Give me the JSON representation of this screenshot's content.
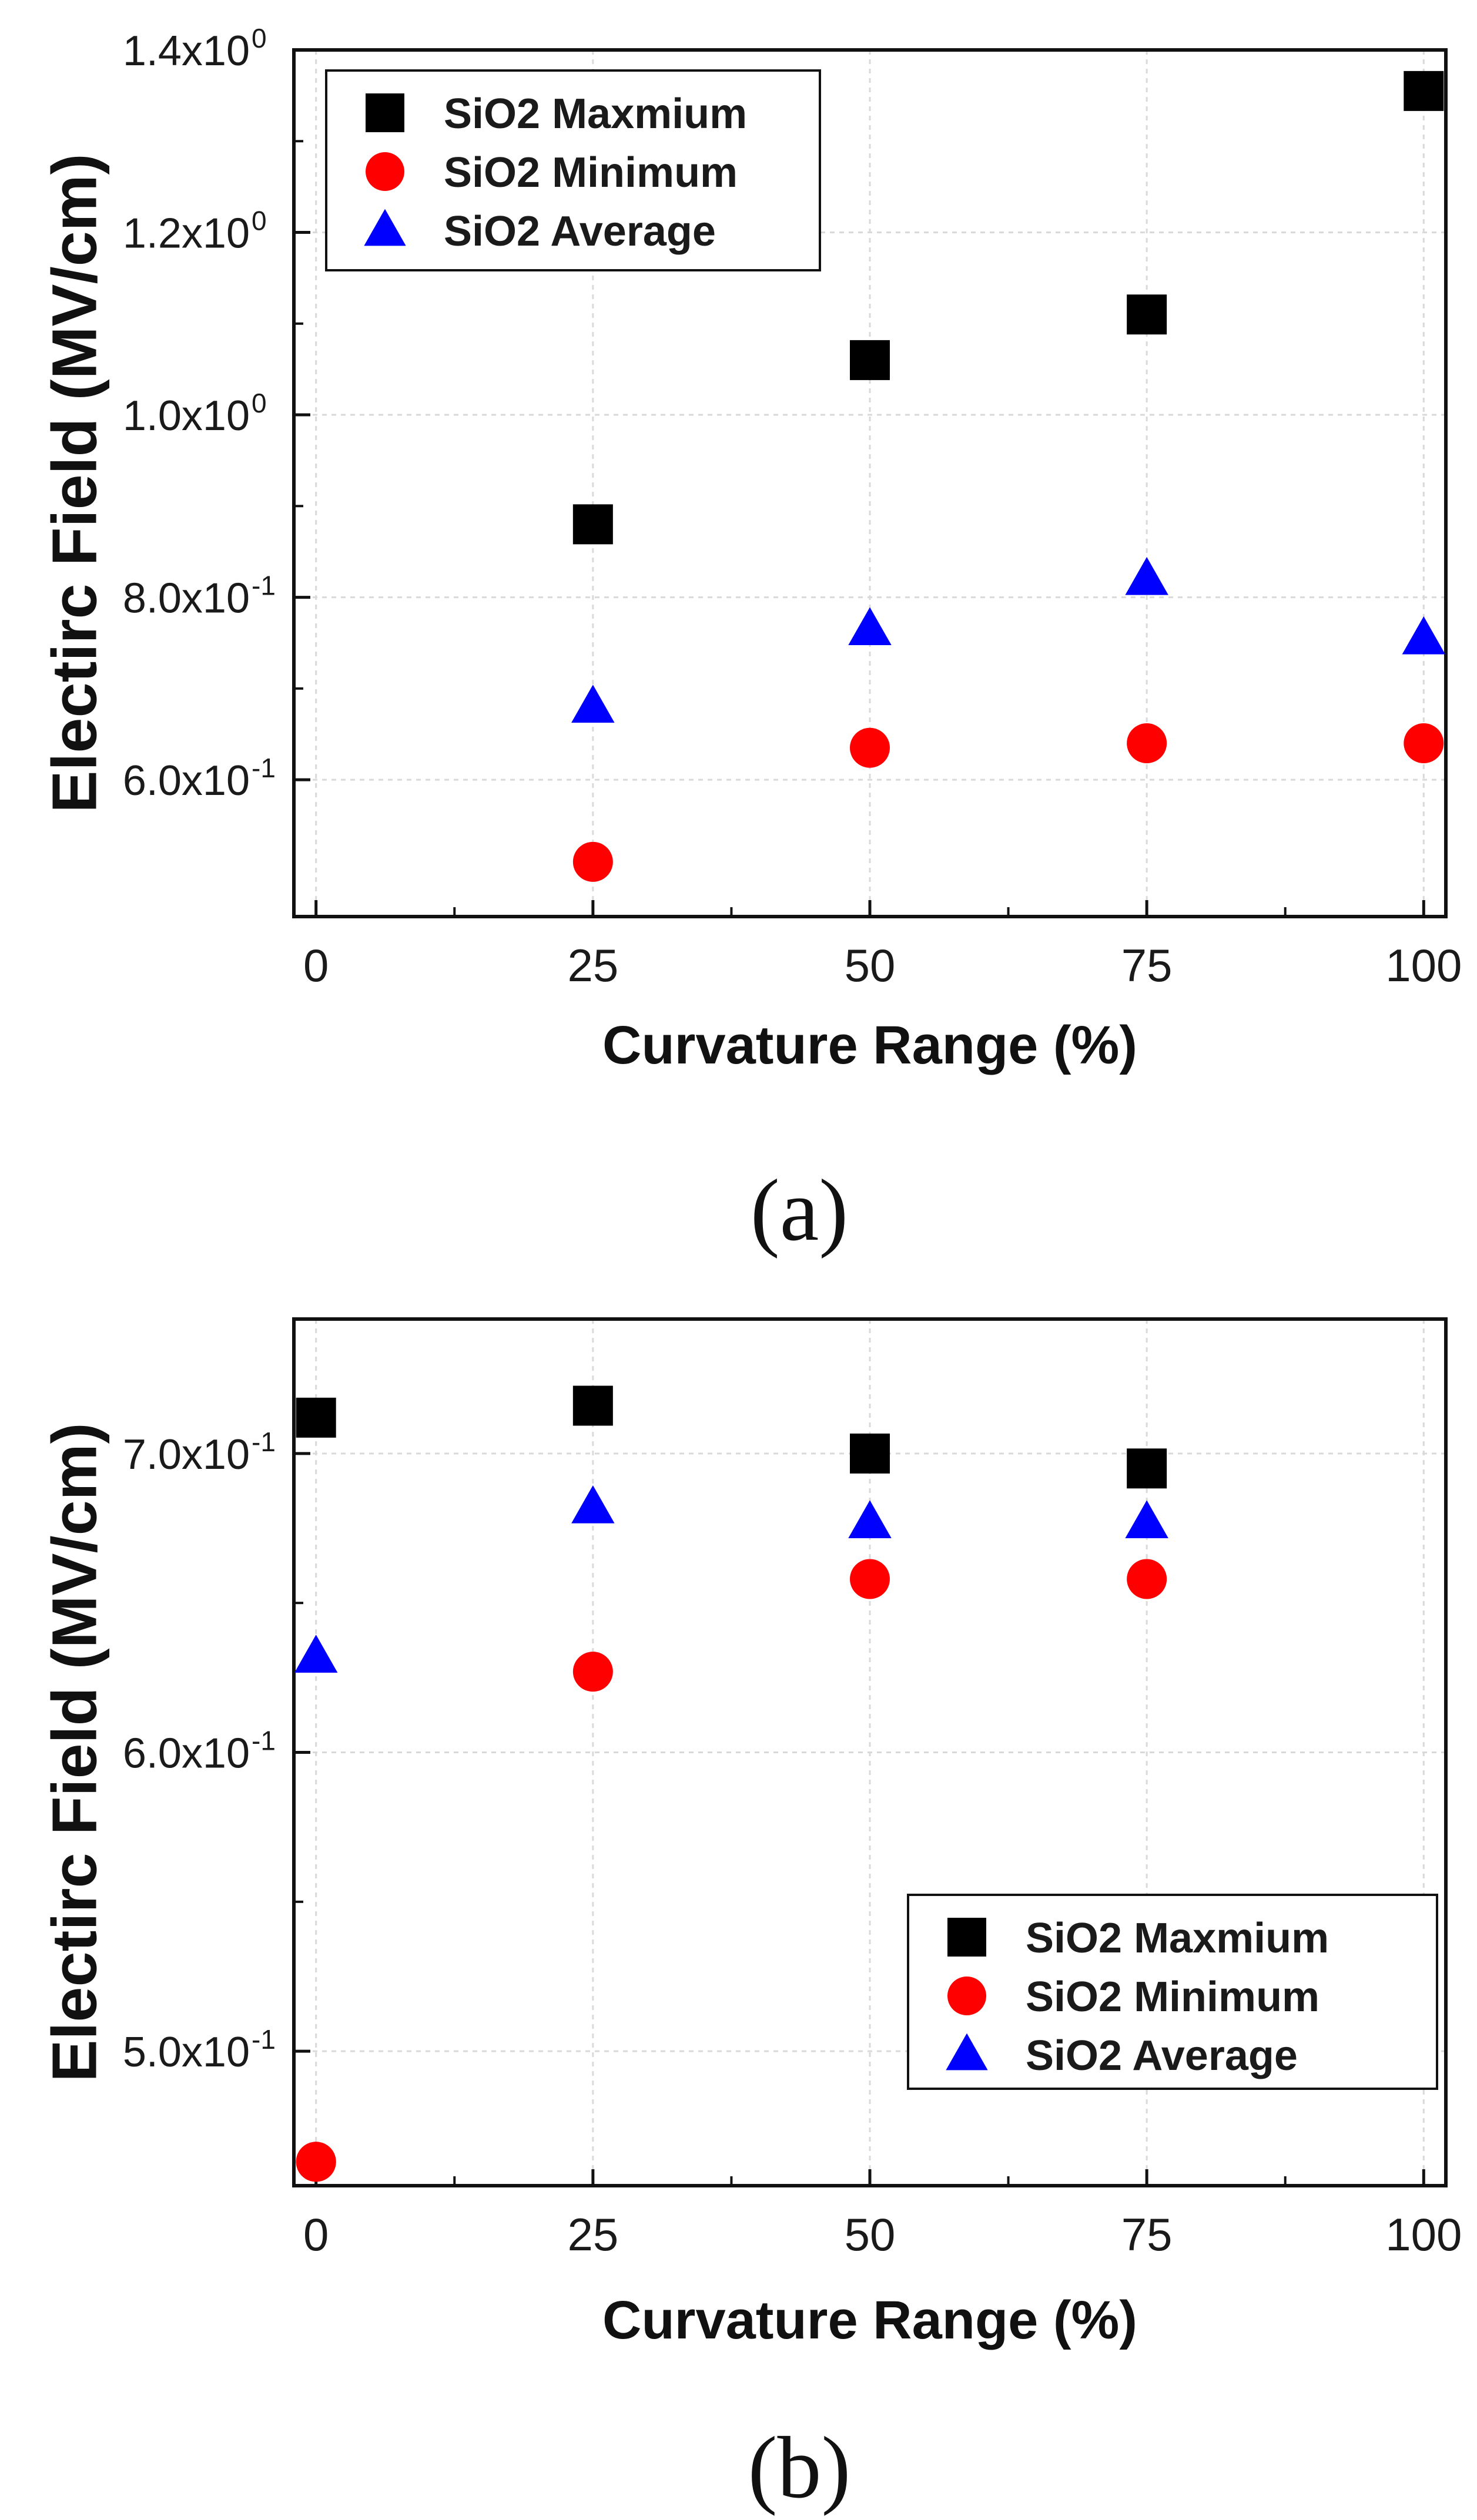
{
  "chart_data": [
    {
      "type": "scatter",
      "panel_label": "(a)",
      "xlabel": "Curvature Range (%)",
      "ylabel": "Electirc Field (MV/cm)",
      "xlim": [
        -2,
        102
      ],
      "ylim": [
        0.45,
        1.4
      ],
      "x_ticks": [
        0,
        25,
        50,
        75,
        100
      ],
      "x_tick_labels": [
        "0",
        "25",
        "50",
        "75",
        "100"
      ],
      "y_ticks": [
        0.6,
        0.8,
        1.0,
        1.2,
        1.4
      ],
      "y_tick_mantissas": [
        "6.0x10",
        "8.0x10",
        "1.0x10",
        "1.2x10",
        "1.4x10"
      ],
      "y_tick_exponents": [
        "-1",
        "-1",
        "0",
        "0",
        "0"
      ],
      "grid": true,
      "legend_position": "top-left",
      "series": [
        {
          "name": "SiO2 Maxmium",
          "marker": "square",
          "color": "#000000",
          "x": [
            25,
            50,
            75,
            100
          ],
          "y": [
            0.88,
            1.06,
            1.11,
            1.355
          ]
        },
        {
          "name": "SiO2 Minimum",
          "marker": "circle",
          "color": "#ff0000",
          "x": [
            25,
            50,
            75,
            100
          ],
          "y": [
            0.51,
            0.635,
            0.64,
            0.64
          ]
        },
        {
          "name": "SiO2 Average",
          "marker": "triangle",
          "color": "#0000ff",
          "x": [
            25,
            50,
            75,
            100
          ],
          "y": [
            0.68,
            0.765,
            0.82,
            0.755
          ]
        }
      ]
    },
    {
      "type": "scatter",
      "panel_label": "(b)",
      "xlabel": "Curvature Range (%)",
      "ylabel": "Electirc Field (MV/cm)",
      "xlim": [
        -2,
        102
      ],
      "ylim": [
        0.455,
        0.745
      ],
      "x_ticks": [
        0,
        25,
        50,
        75,
        100
      ],
      "x_tick_labels": [
        "0",
        "25",
        "50",
        "75",
        "100"
      ],
      "y_ticks": [
        0.5,
        0.6,
        0.7
      ],
      "y_tick_mantissas": [
        "5.0x10",
        "6.0x10",
        "7.0x10"
      ],
      "y_tick_exponents": [
        "-1",
        "-1",
        "-1"
      ],
      "grid": true,
      "legend_position": "bottom-right",
      "series": [
        {
          "name": "SiO2 Maxmium",
          "marker": "square",
          "color": "#000000",
          "x": [
            0,
            25,
            50,
            75
          ],
          "y": [
            0.712,
            0.716,
            0.7,
            0.695
          ]
        },
        {
          "name": "SiO2 Minimum",
          "marker": "circle",
          "color": "#ff0000",
          "x": [
            0,
            25,
            50,
            75,
            0
          ],
          "y": [
            0.463,
            0.627,
            0.658,
            0.658,
            0.463
          ]
        },
        {
          "name": "SiO2 Average",
          "marker": "triangle",
          "color": "#0000ff",
          "x": [
            0,
            25,
            50,
            75
          ],
          "y": [
            0.632,
            0.682,
            0.677,
            0.677
          ]
        }
      ]
    }
  ]
}
